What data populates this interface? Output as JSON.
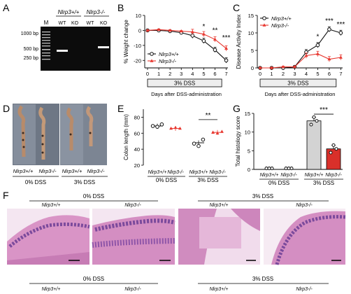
{
  "panels": {
    "A": {
      "letter": "A",
      "header_left": "Nlrp3+/+",
      "header_right": "Nlrp3-/-",
      "lanes": [
        "M",
        "WT",
        "KO",
        "WT",
        "KO"
      ],
      "ladder": [
        "1000 bp",
        "500 bp",
        "250 bp"
      ]
    },
    "B": {
      "letter": "B"
    },
    "C": {
      "letter": "C"
    },
    "D": {
      "letter": "D",
      "genotypes": [
        "Nlrp3+/+",
        "Nlrp3-/-",
        "Nlrp3+/+",
        "Nlrp3-/-"
      ],
      "conditions": [
        "0% DSS",
        "3% DSS"
      ]
    },
    "E": {
      "letter": "E"
    },
    "G": {
      "letter": "G"
    },
    "F": {
      "letter": "F",
      "top_groups": [
        "0% DSS",
        "3% DSS"
      ],
      "genotypes": [
        "Nlrp3+/+",
        "Nlrp3-/-",
        "Nlrp3+/+",
        "Nlrp3-/-"
      ],
      "bottom_groups": [
        "0% DSS",
        "3% DSS"
      ]
    }
  },
  "colors": {
    "wt": "#111111",
    "ko": "#e8372f",
    "bar_wt": "#d3d3d3",
    "bar_ko": "#d9302a",
    "gel": "#0c0c0c",
    "dss_box": "#eeeeee",
    "tissue_pink": "#d994c6",
    "tissue_purple": "#7b4a9c"
  },
  "chart_data": [
    {
      "id": "B",
      "type": "line",
      "ylabel": "% Weight change",
      "xlabel": "Days after DSS-administration",
      "x": [
        0,
        1,
        2,
        3,
        4,
        5,
        6,
        7
      ],
      "xticks": [
        "0",
        "1",
        "2",
        "3",
        "4",
        "5",
        "6",
        "7"
      ],
      "ylim": [
        -25,
        10
      ],
      "yticks": [
        "10",
        "0",
        "-10",
        "-20"
      ],
      "treatment_box": "3% DSS",
      "legend": [
        "Nlrp3+/+",
        "Nlrp3-/-"
      ],
      "legend_position": "bottom-left",
      "series": [
        {
          "name": "Nlrp3+/+",
          "values": [
            0,
            0,
            -0.5,
            -1.5,
            -3.5,
            -7,
            -13,
            -20
          ]
        },
        {
          "name": "Nlrp3-/-",
          "values": [
            0,
            0.5,
            0,
            -0.5,
            -1,
            -2.5,
            -6,
            -12
          ]
        }
      ],
      "significance": [
        {
          "x": 5,
          "text": "*"
        },
        {
          "x": 6,
          "text": "**"
        },
        {
          "x": 7,
          "text": "***"
        }
      ]
    },
    {
      "id": "C",
      "type": "line",
      "ylabel": "Disease Activity Index",
      "xlabel": "Days after DSS-administration",
      "x": [
        0,
        1,
        2,
        3,
        4,
        5,
        6,
        7
      ],
      "xticks": [
        "0",
        "1",
        "2",
        "3",
        "4",
        "5",
        "6",
        "7"
      ],
      "ylim": [
        0,
        15
      ],
      "yticks": [
        "0",
        "5",
        "10",
        "15"
      ],
      "treatment_box": "3% DSS",
      "legend": [
        "Nlrp3+/+",
        "Nlrp3-/-"
      ],
      "legend_position": "top-left",
      "series": [
        {
          "name": "Nlrp3+/+",
          "values": [
            0,
            0,
            0,
            0.3,
            4.5,
            6.5,
            11,
            10
          ]
        },
        {
          "name": "Nlrp3-/-",
          "values": [
            0,
            0,
            0.3,
            0.3,
            3.5,
            4,
            2.5,
            3
          ]
        }
      ],
      "significance": [
        {
          "x": 5,
          "text": "*"
        },
        {
          "x": 6,
          "text": "***"
        },
        {
          "x": 7,
          "text": "***"
        }
      ]
    },
    {
      "id": "E",
      "type": "scatter",
      "ylabel": "Colon length (mm)",
      "ylim": [
        20,
        90
      ],
      "yticks": [
        "20",
        "40",
        "60",
        "80"
      ],
      "categories": [
        "Nlrp3+/+",
        "Nlrp3-/-",
        "Nlrp3+/+",
        "Nlrp3-/-"
      ],
      "groups": [
        "0% DSS",
        "3% DSS"
      ],
      "points": [
        [
          69,
          68,
          71
        ],
        [
          66,
          67,
          66
        ],
        [
          47,
          44,
          52
        ],
        [
          61,
          60,
          62
        ]
      ],
      "means": [
        69,
        66,
        48,
        61
      ],
      "significance": "**"
    },
    {
      "id": "G",
      "type": "bar",
      "ylabel": "Total histology score",
      "ylim": [
        0,
        15
      ],
      "yticks": [
        "0",
        "5",
        "10",
        "15"
      ],
      "categories": [
        "Nlrp3+/+",
        "Nlrp3-/-",
        "Nlrp3+/+",
        "Nlrp3-/-"
      ],
      "groups": [
        "0% DSS",
        "3% DSS"
      ],
      "values": [
        0,
        0,
        13,
        5.5
      ],
      "points": [
        [
          0,
          0,
          0
        ],
        [
          0,
          0,
          0
        ],
        [
          12,
          14,
          13
        ],
        [
          4.5,
          6.5,
          5.5
        ]
      ],
      "significance": "***"
    }
  ]
}
